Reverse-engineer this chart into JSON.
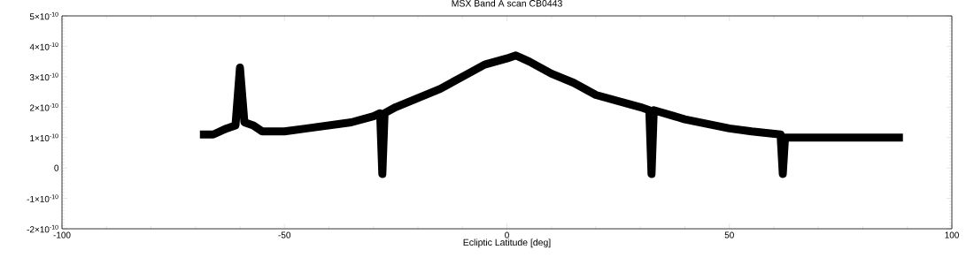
{
  "chart_data": {
    "type": "line",
    "title": "MSX Band A scan CB0443",
    "xlabel": "Ecliptic Latitude [deg]",
    "xlim": [
      -100,
      100
    ],
    "xticks": [
      -100,
      -50,
      0,
      50,
      100
    ],
    "ylim": [
      -2e-10,
      5e-10
    ],
    "yticks": [
      {
        "value": -2e-10,
        "label": "-2×10$^{-10}$"
      },
      {
        "value": -1e-10,
        "label": "-1×10$^{-10}$"
      },
      {
        "value": 0,
        "label": "0"
      },
      {
        "value": 1e-10,
        "label": "1×10$^{-10}$"
      },
      {
        "value": 2e-10,
        "label": "2×10$^{-10}$"
      },
      {
        "value": 3e-10,
        "label": "3×10$^{-10}$"
      },
      {
        "value": 4e-10,
        "label": "4×10$^{-10}$"
      },
      {
        "value": 5e-10,
        "label": "5×10$^{-10}$"
      }
    ],
    "x": [
      -69,
      -66,
      -63,
      -61,
      -60,
      -59,
      -57,
      -55,
      -50,
      -45,
      -40,
      -35,
      -30,
      -28.5,
      -28,
      -27.5,
      -25,
      -20,
      -15,
      -10,
      -5,
      0,
      2,
      5,
      10,
      15,
      20,
      25,
      30,
      32,
      32.5,
      33,
      40,
      50,
      55,
      61.5,
      62,
      62.5,
      70,
      80,
      89
    ],
    "series": [
      {
        "color": "#000000",
        "values": [
          1.1e-10,
          1.1e-10,
          1.3e-10,
          1.4e-10,
          3.3e-10,
          1.5e-10,
          1.4e-10,
          1.2e-10,
          1.2e-10,
          1.3e-10,
          1.4e-10,
          1.5e-10,
          1.7e-10,
          1.8e-10,
          -2e-11,
          1.8e-10,
          2e-10,
          2.3e-10,
          2.6e-10,
          3e-10,
          3.4e-10,
          3.6e-10,
          3.7e-10,
          3.5e-10,
          3.1e-10,
          2.8e-10,
          2.4e-10,
          2.2e-10,
          2e-10,
          1.9e-10,
          -2e-11,
          1.9e-10,
          1.6e-10,
          1.3e-10,
          1.2e-10,
          1.1e-10,
          -2e-11,
          1e-10,
          1e-10,
          1e-10,
          1e-10
        ]
      }
    ]
  }
}
